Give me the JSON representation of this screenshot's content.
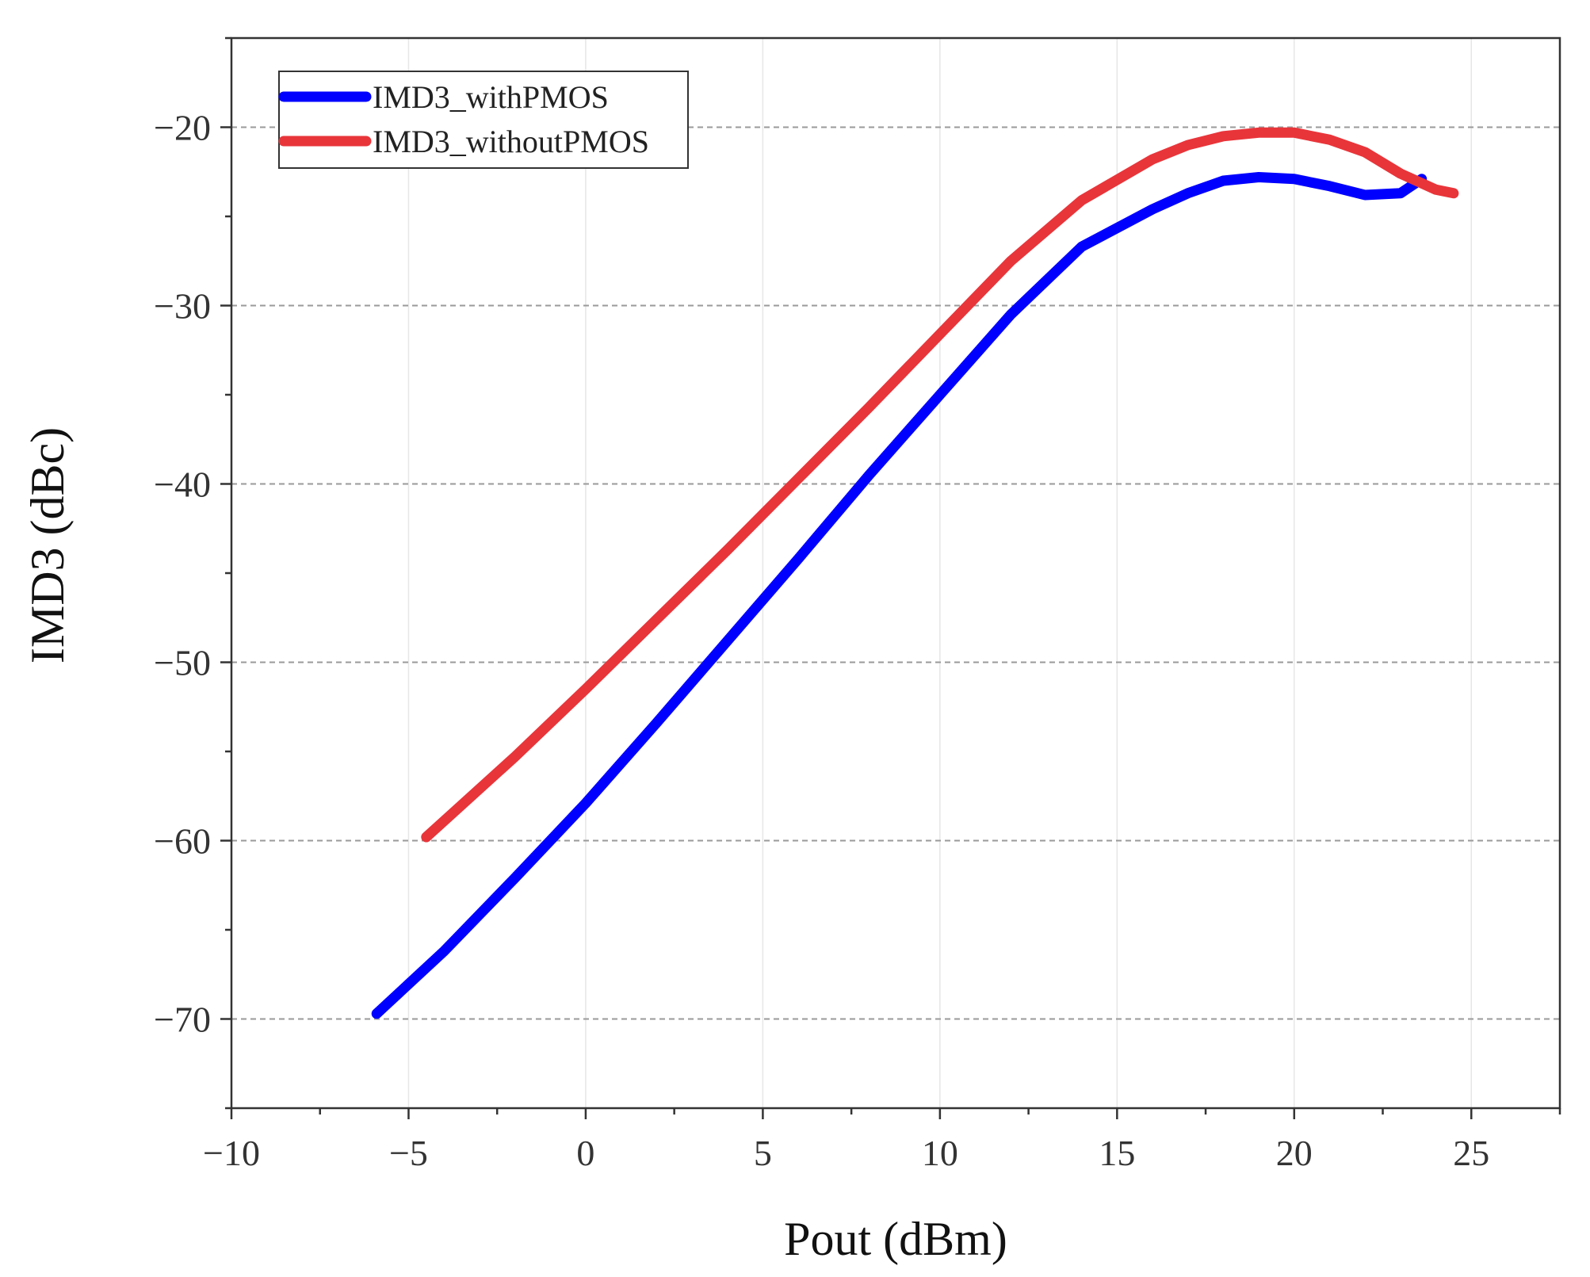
{
  "chart_data": {
    "type": "line",
    "title": "",
    "xlabel": "Pout (dBm)",
    "ylabel": "IMD3 (dBc)",
    "xlim": [
      -10,
      27.5
    ],
    "ylim": [
      -75,
      -15
    ],
    "xticks": [
      -10,
      -5,
      0,
      5,
      10,
      15,
      20,
      25
    ],
    "xtick_labels": [
      "−10",
      "−5",
      "0",
      "5",
      "10",
      "15",
      "20",
      "25"
    ],
    "yticks": [
      -70,
      -60,
      -50,
      -40,
      -30,
      -20
    ],
    "ytick_labels": [
      "−70",
      "−60",
      "−50",
      "−40",
      "−30",
      "−20"
    ],
    "grid": true,
    "grid_style": "dashed",
    "legend_position": "top-left",
    "series": [
      {
        "name": "IMD3_withPMOS",
        "color": "#0000ff",
        "x": [
          -5.9,
          -4,
          -2,
          0,
          2,
          4,
          6,
          8,
          10,
          12,
          14,
          16,
          17,
          18,
          19,
          20,
          21,
          22,
          23,
          23.6
        ],
        "y": [
          -69.7,
          -66.2,
          -62.1,
          -57.9,
          -53.4,
          -48.8,
          -44.2,
          -39.5,
          -35.0,
          -30.5,
          -26.7,
          -24.6,
          -23.7,
          -23.0,
          -22.8,
          -22.9,
          -23.3,
          -23.8,
          -23.7,
          -22.9
        ]
      },
      {
        "name": "IMD3_withoutPMOS",
        "color": "#e8353a",
        "x": [
          -4.5,
          -2,
          0,
          2,
          4,
          6,
          8,
          10,
          12,
          14,
          16,
          17,
          18,
          19,
          20,
          21,
          22,
          23,
          24,
          24.5
        ],
        "y": [
          -59.8,
          -55.3,
          -51.5,
          -47.6,
          -43.7,
          -39.7,
          -35.7,
          -31.6,
          -27.5,
          -24.1,
          -21.8,
          -21.0,
          -20.5,
          -20.3,
          -20.3,
          -20.7,
          -21.4,
          -22.6,
          -23.5,
          -23.7
        ]
      }
    ]
  }
}
